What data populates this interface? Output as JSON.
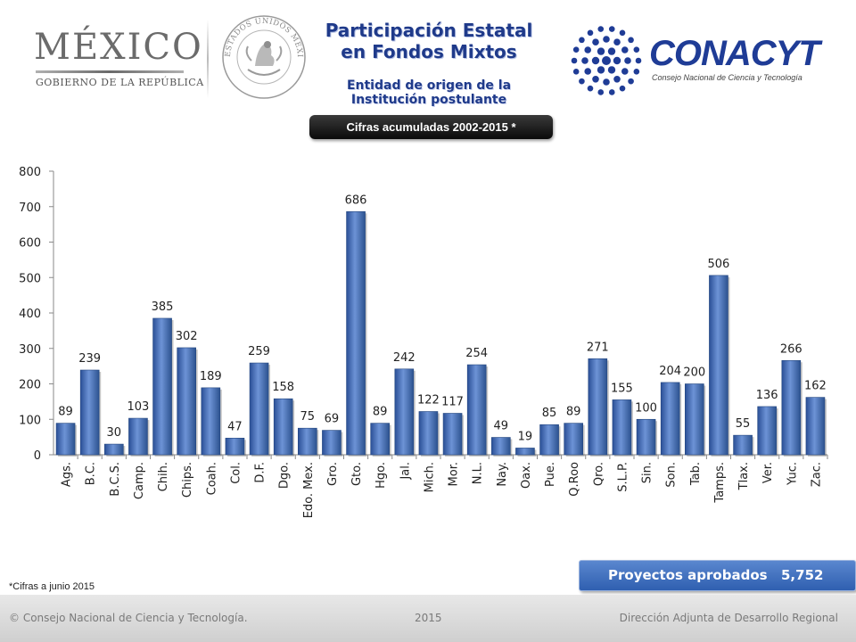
{
  "header": {
    "mexico": {
      "name": "MÉXICO",
      "subtitle": "GOBIERNO DE LA REPÚBLICA"
    },
    "seal_text": "ESTADOS UNIDOS MEXICANOS",
    "title_line1": "Participación Estatal",
    "title_line2": "en Fondos Mixtos",
    "subtitle_line1": "Entidad de origen de la",
    "subtitle_line2": "Institución postulante",
    "cifras": "Cifras acumuladas 2002-2015 *",
    "conacyt": {
      "name": "CONACYT",
      "subtitle": "Consejo Nacional de Ciencia y Tecnología"
    }
  },
  "chart_data": {
    "type": "bar",
    "categories": [
      "Ags.",
      "B.C.",
      "B.C.S.",
      "Camp.",
      "Chih.",
      "Chips.",
      "Coah.",
      "Col.",
      "D.F.",
      "Dgo.",
      "Edo. Mex.",
      "Gro.",
      "Gto.",
      "Hgo.",
      "Jal.",
      "Mich.",
      "Mor.",
      "N.L.",
      "Nay.",
      "Oax.",
      "Pue.",
      "Q.Roo",
      "Qro.",
      "S.L.P.",
      "Sin.",
      "Son.",
      "Tab.",
      "Tamps.",
      "Tlax.",
      "Ver.",
      "Yuc.",
      "Zac."
    ],
    "values": [
      89,
      239,
      30,
      103,
      385,
      302,
      189,
      47,
      259,
      158,
      75,
      69,
      686,
      89,
      242,
      122,
      117,
      254,
      49,
      19,
      85,
      89,
      271,
      155,
      100,
      204,
      200,
      506,
      55,
      136,
      266,
      162
    ],
    "yticks": [
      "0",
      "100",
      "200",
      "300",
      "400",
      "500",
      "600",
      "700",
      "800"
    ],
    "ylim": [
      0,
      800
    ],
    "bar_color": "#3f6ab5",
    "grid": false,
    "data_labels": true
  },
  "note": "*Cifras a junio 2015",
  "approved": {
    "label": "Proyectos aprobados",
    "value": "5,752"
  },
  "footer": {
    "left": "© Consejo Nacional de Ciencia y Tecnología.",
    "center": "2015",
    "right": "Dirección Adjunta de Desarrollo Regional"
  }
}
